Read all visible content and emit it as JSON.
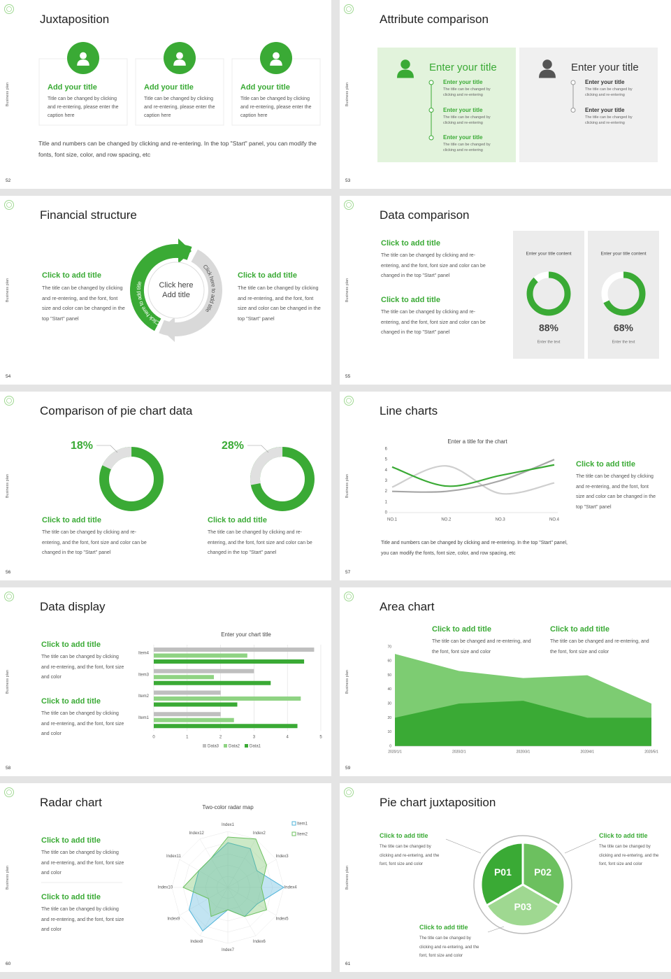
{
  "slides": [
    {
      "number": "52",
      "side": "Business plan",
      "title": "Juxtaposition",
      "cards": [
        {
          "title": "Add your title",
          "text": "Title can be changed by clicking and re-entering, please enter the caption here"
        },
        {
          "title": "Add your title",
          "text": "Title can be changed by clicking and re-entering, please enter the caption here"
        },
        {
          "title": "Add your title",
          "text": "Title can be changed by clicking and re-entering, please enter the caption here"
        }
      ],
      "note": "Title and numbers can be changed by clicking and re-entering. In the top \"Start\" panel, you can modify the fonts, font size, color, and row spacing, etc"
    },
    {
      "number": "53",
      "side": "Business plan",
      "title": "Attribute comparison",
      "panels": [
        {
          "title": "Enter your title",
          "items": [
            {
              "title": "Enter your title",
              "text": "The title can be changed by clicking and re-entering"
            },
            {
              "title": "Enter your title",
              "text": "The title can be changed by clicking and re-entering"
            },
            {
              "title": "Enter your title",
              "text": "The title can be changed by clicking and re-entering"
            }
          ]
        },
        {
          "title": "Enter your title",
          "items": [
            {
              "title": "Enter your title",
              "text": "The title can be changed by clicking and re-entering"
            },
            {
              "title": "Enter your title",
              "text": "The title can be changed by clicking and re-entering"
            }
          ]
        }
      ]
    },
    {
      "number": "54",
      "side": "Business plan",
      "title": "Financial structure",
      "blocks": [
        {
          "title": "Click to add title",
          "text": "The title can be changed by clicking and re-entering, and the font, font size and color can be changed in the top \"Start\" panel"
        },
        {
          "title": "Click to add title",
          "text": "The title can be changed by clicking and re-entering, and the font, font size and color can be changed in the top \"Start\" panel"
        }
      ],
      "center": [
        "Click here",
        "Add title"
      ],
      "arrows": [
        "Click here to add title",
        "Click here to add title"
      ]
    },
    {
      "number": "55",
      "side": "Business plan",
      "title": "Data comparison",
      "blocks": [
        {
          "title": "Click to add title",
          "text": "The title can be changed by clicking and re-entering, and the font, font size and color can be changed in the top \"Start\" panel"
        },
        {
          "title": "Click to add title",
          "text": "The title can be changed by clicking and re-entering, and the font, font size and color can be changed in the top \"Start\" panel"
        }
      ],
      "chart": {
        "type": "donut",
        "titles": [
          "Enter your title content",
          "Enter your title content"
        ],
        "values": [
          88,
          68
        ],
        "value_labels": [
          "88%",
          "68%"
        ],
        "captions": [
          "Enter the text",
          "Enter the text"
        ],
        "color": "#3aaa35"
      }
    },
    {
      "number": "56",
      "side": "Business plan",
      "title": "Comparison of pie chart data",
      "chart": {
        "type": "donut",
        "values": [
          18,
          28
        ],
        "value_labels": [
          "18%",
          "28%"
        ],
        "color": "#e0e0e0"
      },
      "blocks": [
        {
          "title": "Click to add title",
          "text": "The title can be changed by clicking and re-entering, and the font, font size and color can be changed in the top \"Start\" panel"
        },
        {
          "title": "Click to add title",
          "text": "The title can be changed by clicking and re-entering, and the font, font size and color can be changed in the top \"Start\" panel"
        }
      ]
    },
    {
      "number": "57",
      "side": "Business plan",
      "title": "Line charts",
      "chart": {
        "type": "line",
        "title": "Enter a title for the chart",
        "categories": [
          "NO.1",
          "NO.2",
          "NO.3",
          "NO.4"
        ],
        "ylim": [
          0,
          6
        ],
        "yticks": [
          0,
          1,
          2,
          3,
          4,
          5,
          6
        ],
        "series": [
          {
            "color": "#cfcfcf",
            "values": [
              2.4,
              4.4,
              1.8,
              2.8
            ]
          },
          {
            "color": "#a6a6a6",
            "values": [
              2.0,
              2.0,
              3.0,
              5.0
            ]
          },
          {
            "color": "#3aaa35",
            "values": [
              4.3,
              2.5,
              3.5,
              4.5
            ]
          }
        ]
      },
      "blocks": [
        {
          "title": "Click to add title",
          "text": "The title can be changed by clicking and re-entering, and the font, font size and color can be changed in the top \"Start\" panel"
        }
      ],
      "note": "Title and numbers can be changed by clicking and re-entering. In the top \"Start\" panel, you can modify the fonts, font size, color, and row spacing, etc"
    },
    {
      "number": "58",
      "side": "Business plan",
      "title": "Data display",
      "chart": {
        "type": "hbar",
        "title": "Enter your chart title",
        "categories": [
          "Item1",
          "Item2",
          "Item3",
          "Item4"
        ],
        "xlim": [
          0,
          5
        ],
        "xticks": [
          0,
          1,
          2,
          3,
          4,
          5
        ],
        "grid": true,
        "legend": "bottom",
        "series": [
          {
            "name": "Data3",
            "color": "#bfbfbf",
            "values": [
              2,
              2,
              3,
              4.8
            ]
          },
          {
            "name": "Data2",
            "color": "#8fd383",
            "values": [
              2.4,
              4.4,
              1.8,
              2.8
            ]
          },
          {
            "name": "Data1",
            "color": "#3aaa35",
            "values": [
              4.3,
              2.5,
              3.5,
              4.5
            ]
          }
        ]
      },
      "blocks": [
        {
          "title": "Click to add title",
          "text": "The title can be changed by clicking and re-entering, and the font, font size and color"
        },
        {
          "title": "Click to add title",
          "text": "The title can be changed by clicking and re-entering, and the font, font size and color"
        }
      ]
    },
    {
      "number": "59",
      "side": "Business plan",
      "title": "Area chart",
      "chart": {
        "type": "area",
        "x": [
          "2020/1/1",
          "2020/2/1",
          "2020/3/1",
          "2020/4/1",
          "2020/5/1"
        ],
        "ylim": [
          0,
          70
        ],
        "yticks": [
          0,
          10,
          20,
          30,
          40,
          50,
          60,
          70
        ],
        "series": [
          {
            "color": "#7dcc72",
            "values": [
              65,
              53,
              48,
              50,
              30
            ]
          },
          {
            "color": "#3aaa35",
            "values": [
              20,
              30,
              32,
              20,
              20
            ]
          }
        ]
      },
      "blocks": [
        {
          "title": "Click to add title",
          "text": "The title can be changed and re-entering, and the font, font size and color"
        },
        {
          "title": "Click to add title",
          "text": "The title can be changed and re-entering, and the font, font size and color"
        }
      ]
    },
    {
      "number": "60",
      "side": "Business plan",
      "title": "Radar chart",
      "chart": {
        "type": "radar",
        "title": "Two-color radar map",
        "categories": [
          "Index1",
          "Index2",
          "Index3",
          "Index4",
          "Index5",
          "Index6",
          "Index7",
          "Index8",
          "Index9",
          "Index10",
          "Index11",
          "Index12"
        ],
        "rlim": [
          0,
          5
        ],
        "legend": "top-right",
        "series": [
          {
            "name": "Item1",
            "color": "#4fb3d9",
            "values": [
              4,
              4,
              3,
              5,
              3,
              3,
              2,
              4.5,
              4,
              3,
              3,
              3
            ]
          },
          {
            "name": "Item2",
            "color": "#6cc05f",
            "values": [
              4.5,
              5,
              4,
              3,
              4,
              3,
              2,
              3,
              2,
              4,
              3,
              3
            ]
          }
        ]
      },
      "blocks": [
        {
          "title": "Click to add title",
          "text": "The title can be changed by clicking and re-entering, and the font, font size and color"
        },
        {
          "title": "Click to add title",
          "text": "The title can be changed by clicking and re-entering, and the font, font size and color"
        }
      ]
    },
    {
      "number": "61",
      "side": "Business plan",
      "title": "Pie chart juxtaposition",
      "segments": [
        "P01",
        "P02",
        "P03"
      ],
      "blocks": [
        {
          "title": "Click to add title",
          "text": "The title can be changed by clicking and re-entering, and the font, font size and color"
        },
        {
          "title": "Click to add title",
          "text": "The title can be changed by clicking and re-entering, and the font, font size and color"
        },
        {
          "title": "Click to add title",
          "text": "The title can be changed by clicking and re-entering, and the font, font size and color"
        }
      ]
    }
  ]
}
